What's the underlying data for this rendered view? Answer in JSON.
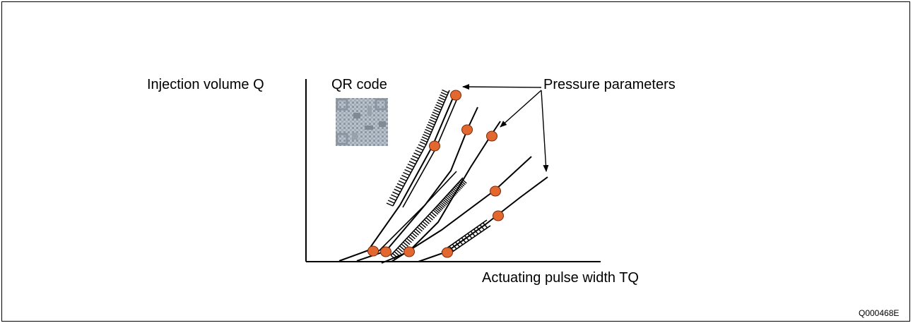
{
  "labels": {
    "y_axis": "Injection volume Q",
    "qr": "QR code",
    "pressure": "Pressure parameters",
    "x_axis": "Actuating pulse width TQ",
    "figure_code": "Q000468E"
  },
  "colors": {
    "marker_fill": "#e2682f",
    "marker_stroke": "#7a2a0a",
    "line": "#000000"
  },
  "icons": {
    "qr": "qr-code-icon"
  }
}
